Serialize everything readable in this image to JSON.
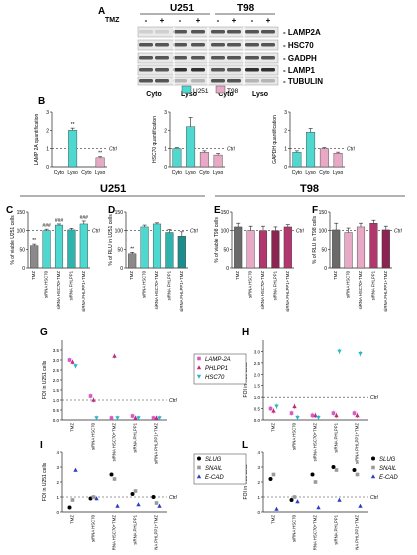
{
  "panel_letters": [
    "A",
    "B",
    "C",
    "D",
    "E",
    "F",
    "G",
    "H",
    "I",
    "L"
  ],
  "section_a": {
    "tmz_label": "TMZ",
    "minus": "-",
    "plus": "+",
    "cell_lines": [
      "U251",
      "T98"
    ],
    "fractions": [
      "Cyto",
      "Lyso",
      "Cyto",
      "Lyso"
    ],
    "bands": [
      "LAMP2A",
      "HSC70",
      "GADPH",
      "LAMP1",
      "TUBULIN"
    ]
  },
  "legend_b": {
    "u251": "U251",
    "t98": "T98"
  },
  "ctrl_label": "Ctrl",
  "section_headers": {
    "u251": "U251",
    "t98": "T98"
  },
  "colors": {
    "u251_main": "#4fd8cf",
    "t98_main": "#e8a9c6",
    "tmz_gray": "#8a8a8a",
    "teal2": "#2fb3ad",
    "teal3": "#1f8c8c",
    "t98_dark": "#6a6a6a",
    "magenta": "#b2376f",
    "magenta_dark": "#8a2450",
    "lamp2a": "#d45ac4",
    "fhlpp1": "#c0287a",
    "hsc70": "#2ab5c9",
    "slug": "#000000",
    "snail": "#9a9a9a",
    "ecad": "#2a3fc8"
  },
  "chart_data": [
    {
      "panel": "B1",
      "type": "bar",
      "ylabel": "LAMP 2A quantification",
      "categories": [
        "Cyto",
        "Lyso",
        "Cyto",
        "Lyso"
      ],
      "values": [
        0,
        2.0,
        0,
        0.5
      ],
      "errors": [
        0,
        0.12,
        0,
        0.06
      ],
      "ylim": [
        0,
        3
      ],
      "yticks": [
        "0",
        "1",
        "2",
        "3"
      ],
      "sig": [
        "",
        "**",
        "",
        "**"
      ]
    },
    {
      "panel": "B2",
      "type": "bar",
      "ylabel": "HSC70 quantification",
      "categories": [
        "Cyto",
        "Lyso",
        "Cyto",
        "Lyso"
      ],
      "values": [
        1.0,
        2.2,
        0.8,
        0.65
      ],
      "errors": [
        0.06,
        0.5,
        0.08,
        0.08
      ],
      "ylim": [
        0,
        3
      ],
      "yticks": [
        "0",
        "1",
        "2",
        "3"
      ],
      "sig": [
        "",
        "",
        "",
        ""
      ]
    },
    {
      "panel": "B3",
      "type": "bar",
      "ylabel": "GAPDH quantification",
      "categories": [
        "Cyto",
        "Lyso",
        "Cyto",
        "Lyso"
      ],
      "values": [
        0.8,
        1.9,
        1.0,
        0.75
      ],
      "errors": [
        0.08,
        0.2,
        0.06,
        0.06
      ],
      "ylim": [
        0,
        3
      ],
      "yticks": [
        "0",
        "1",
        "2",
        "3"
      ],
      "sig": [
        "",
        "",
        "",
        ""
      ]
    },
    {
      "panel": "C",
      "type": "bar",
      "ylabel": "% of viable U251 cells",
      "categories": [
        "TMZ",
        "siRNA HSC70",
        "siRNA HSC70+TMZ",
        "siRNA FHLPP1",
        "siRNA FHLPP1+TMZ"
      ],
      "values": [
        60,
        100,
        115,
        102,
        118
      ],
      "errors": [
        4,
        4,
        3,
        4,
        8
      ],
      "ylim": [
        0,
        150
      ],
      "yticks": [
        "0",
        "50",
        "100",
        "150"
      ],
      "sig": [
        "**",
        "###",
        "###",
        "",
        "###"
      ]
    },
    {
      "panel": "D",
      "type": "bar",
      "ylabel": "% of RLU in U251 cells",
      "categories": [
        "TMZ",
        "siRNA HSC70",
        "siRNA HSC70+TMZ",
        "siRNA FHLPP1",
        "siRNA FHLPP1+TMZ"
      ],
      "values": [
        38,
        110,
        118,
        95,
        85
      ],
      "errors": [
        4,
        5,
        3,
        8,
        12
      ],
      "ylim": [
        0,
        150
      ],
      "yticks": [
        "0",
        "50",
        "100",
        "150"
      ],
      "sig": [
        "**",
        "",
        "",
        "",
        ""
      ]
    },
    {
      "panel": "E",
      "type": "bar",
      "ylabel": "% of viable T98 cells",
      "categories": [
        "TMZ",
        "siRNA HSC70",
        "siRNA HSC70+TMZ",
        "siRNA FHLPP1",
        "siRNA FHLPP1+TMZ"
      ],
      "values": [
        110,
        100,
        100,
        100,
        110
      ],
      "errors": [
        10,
        12,
        12,
        10,
        6
      ],
      "ylim": [
        0,
        150
      ],
      "yticks": [
        "0",
        "50",
        "100",
        "150"
      ],
      "sig": [
        "",
        "",
        "",
        "",
        ""
      ]
    },
    {
      "panel": "F",
      "type": "bar",
      "ylabel": "% of RLU in T98 cells",
      "categories": [
        "TMZ",
        "siRNA HSC70",
        "siRNA HSC70+TMZ",
        "siRNA FHLPP1",
        "siRNA FHLPP1+TMZ"
      ],
      "values": [
        102,
        95,
        110,
        120,
        102
      ],
      "errors": [
        18,
        12,
        10,
        8,
        10
      ],
      "ylim": [
        0,
        150
      ],
      "yticks": [
        "0",
        "50",
        "100",
        "150"
      ],
      "sig": [
        "",
        "",
        "",
        "",
        ""
      ]
    },
    {
      "panel": "G",
      "type": "scatter",
      "ylabel": "FOI in U251 cells",
      "categories": [
        "TMZ",
        "siRNA HSC70",
        "siRNA HSC70+TMZ",
        "siRNA PHLPP1",
        "siRNA PHLPP1+TMZ"
      ],
      "ylim": [
        0,
        4
      ],
      "yticks": [
        "0.0",
        "0.5",
        "1.0",
        "1.5",
        "2.0",
        "2.5",
        "3.0",
        "3.5"
      ],
      "series": [
        {
          "name": "LAMP-2A",
          "values": [
            3.0,
            1.2,
            0.1,
            0.2,
            0.1
          ]
        },
        {
          "name": "PHLPP1",
          "values": [
            2.9,
            1.0,
            3.2,
            0.1,
            0.1
          ]
        },
        {
          "name": "HSC70",
          "values": [
            2.7,
            0.1,
            0.1,
            0.1,
            0.1
          ]
        }
      ]
    },
    {
      "panel": "H",
      "type": "scatter",
      "ylabel": "FOI in T98 cells",
      "categories": [
        "TMZ",
        "siRNA HSC70",
        "siRNA HSC70+TMZ",
        "siRNA PHLPP1",
        "siRNA PHLPP1+TMZ"
      ],
      "ylim": [
        0,
        3.5
      ],
      "yticks": [
        "0.0",
        "0.5",
        "1.0",
        "1.5",
        "2.0",
        "2.5",
        "3.0"
      ],
      "series": [
        {
          "name": "LAMP-2A",
          "values": [
            0.5,
            0.3,
            0.2,
            0.3,
            0.3
          ]
        },
        {
          "name": "PHLPP1",
          "values": [
            0.4,
            0.6,
            0.2,
            0.2,
            0.2
          ]
        },
        {
          "name": "HSC70",
          "values": [
            0.6,
            0.1,
            0.1,
            3.0,
            2.9
          ]
        }
      ]
    },
    {
      "panel": "I",
      "type": "scatter",
      "ylabel": "FOI in U251 cells",
      "categories": [
        "TMZ",
        "siRNA HSC70",
        "siRNA HSC70+TMZ",
        "siRNA PHLPP1",
        "siRNA PHLPP1+TMZ"
      ],
      "ylim": [
        0,
        4
      ],
      "yticks": [
        "0",
        "1",
        "2",
        "3",
        "4"
      ],
      "series": [
        {
          "name": "SLUG",
          "values": [
            0.3,
            0.9,
            2.5,
            1.2,
            1.0
          ]
        },
        {
          "name": "SNAIL",
          "values": [
            0.8,
            1.0,
            2.2,
            1.4,
            0.6
          ]
        },
        {
          "name": "E-CAD",
          "values": [
            2.8,
            0.9,
            0.4,
            0.5,
            0.4
          ]
        }
      ]
    },
    {
      "panel": "L",
      "type": "scatter",
      "ylabel": "FOI in T98 cells",
      "categories": [
        "TMZ",
        "siRNA HSC70",
        "siRNA HSC70+TMZ",
        "siRNA PHLPP1",
        "siRNA PHLPP1+TMZ"
      ],
      "ylim": [
        0,
        4
      ],
      "yticks": [
        "0",
        "1",
        "2",
        "3",
        "4"
      ],
      "series": [
        {
          "name": "SLUG",
          "values": [
            2.2,
            0.8,
            2.5,
            3.0,
            2.8
          ]
        },
        {
          "name": "SNAIL",
          "values": [
            2.5,
            1.0,
            2.0,
            2.8,
            2.5
          ]
        },
        {
          "name": "E-CAD",
          "values": [
            0.2,
            0.7,
            0.3,
            0.8,
            0.4
          ]
        }
      ]
    }
  ]
}
